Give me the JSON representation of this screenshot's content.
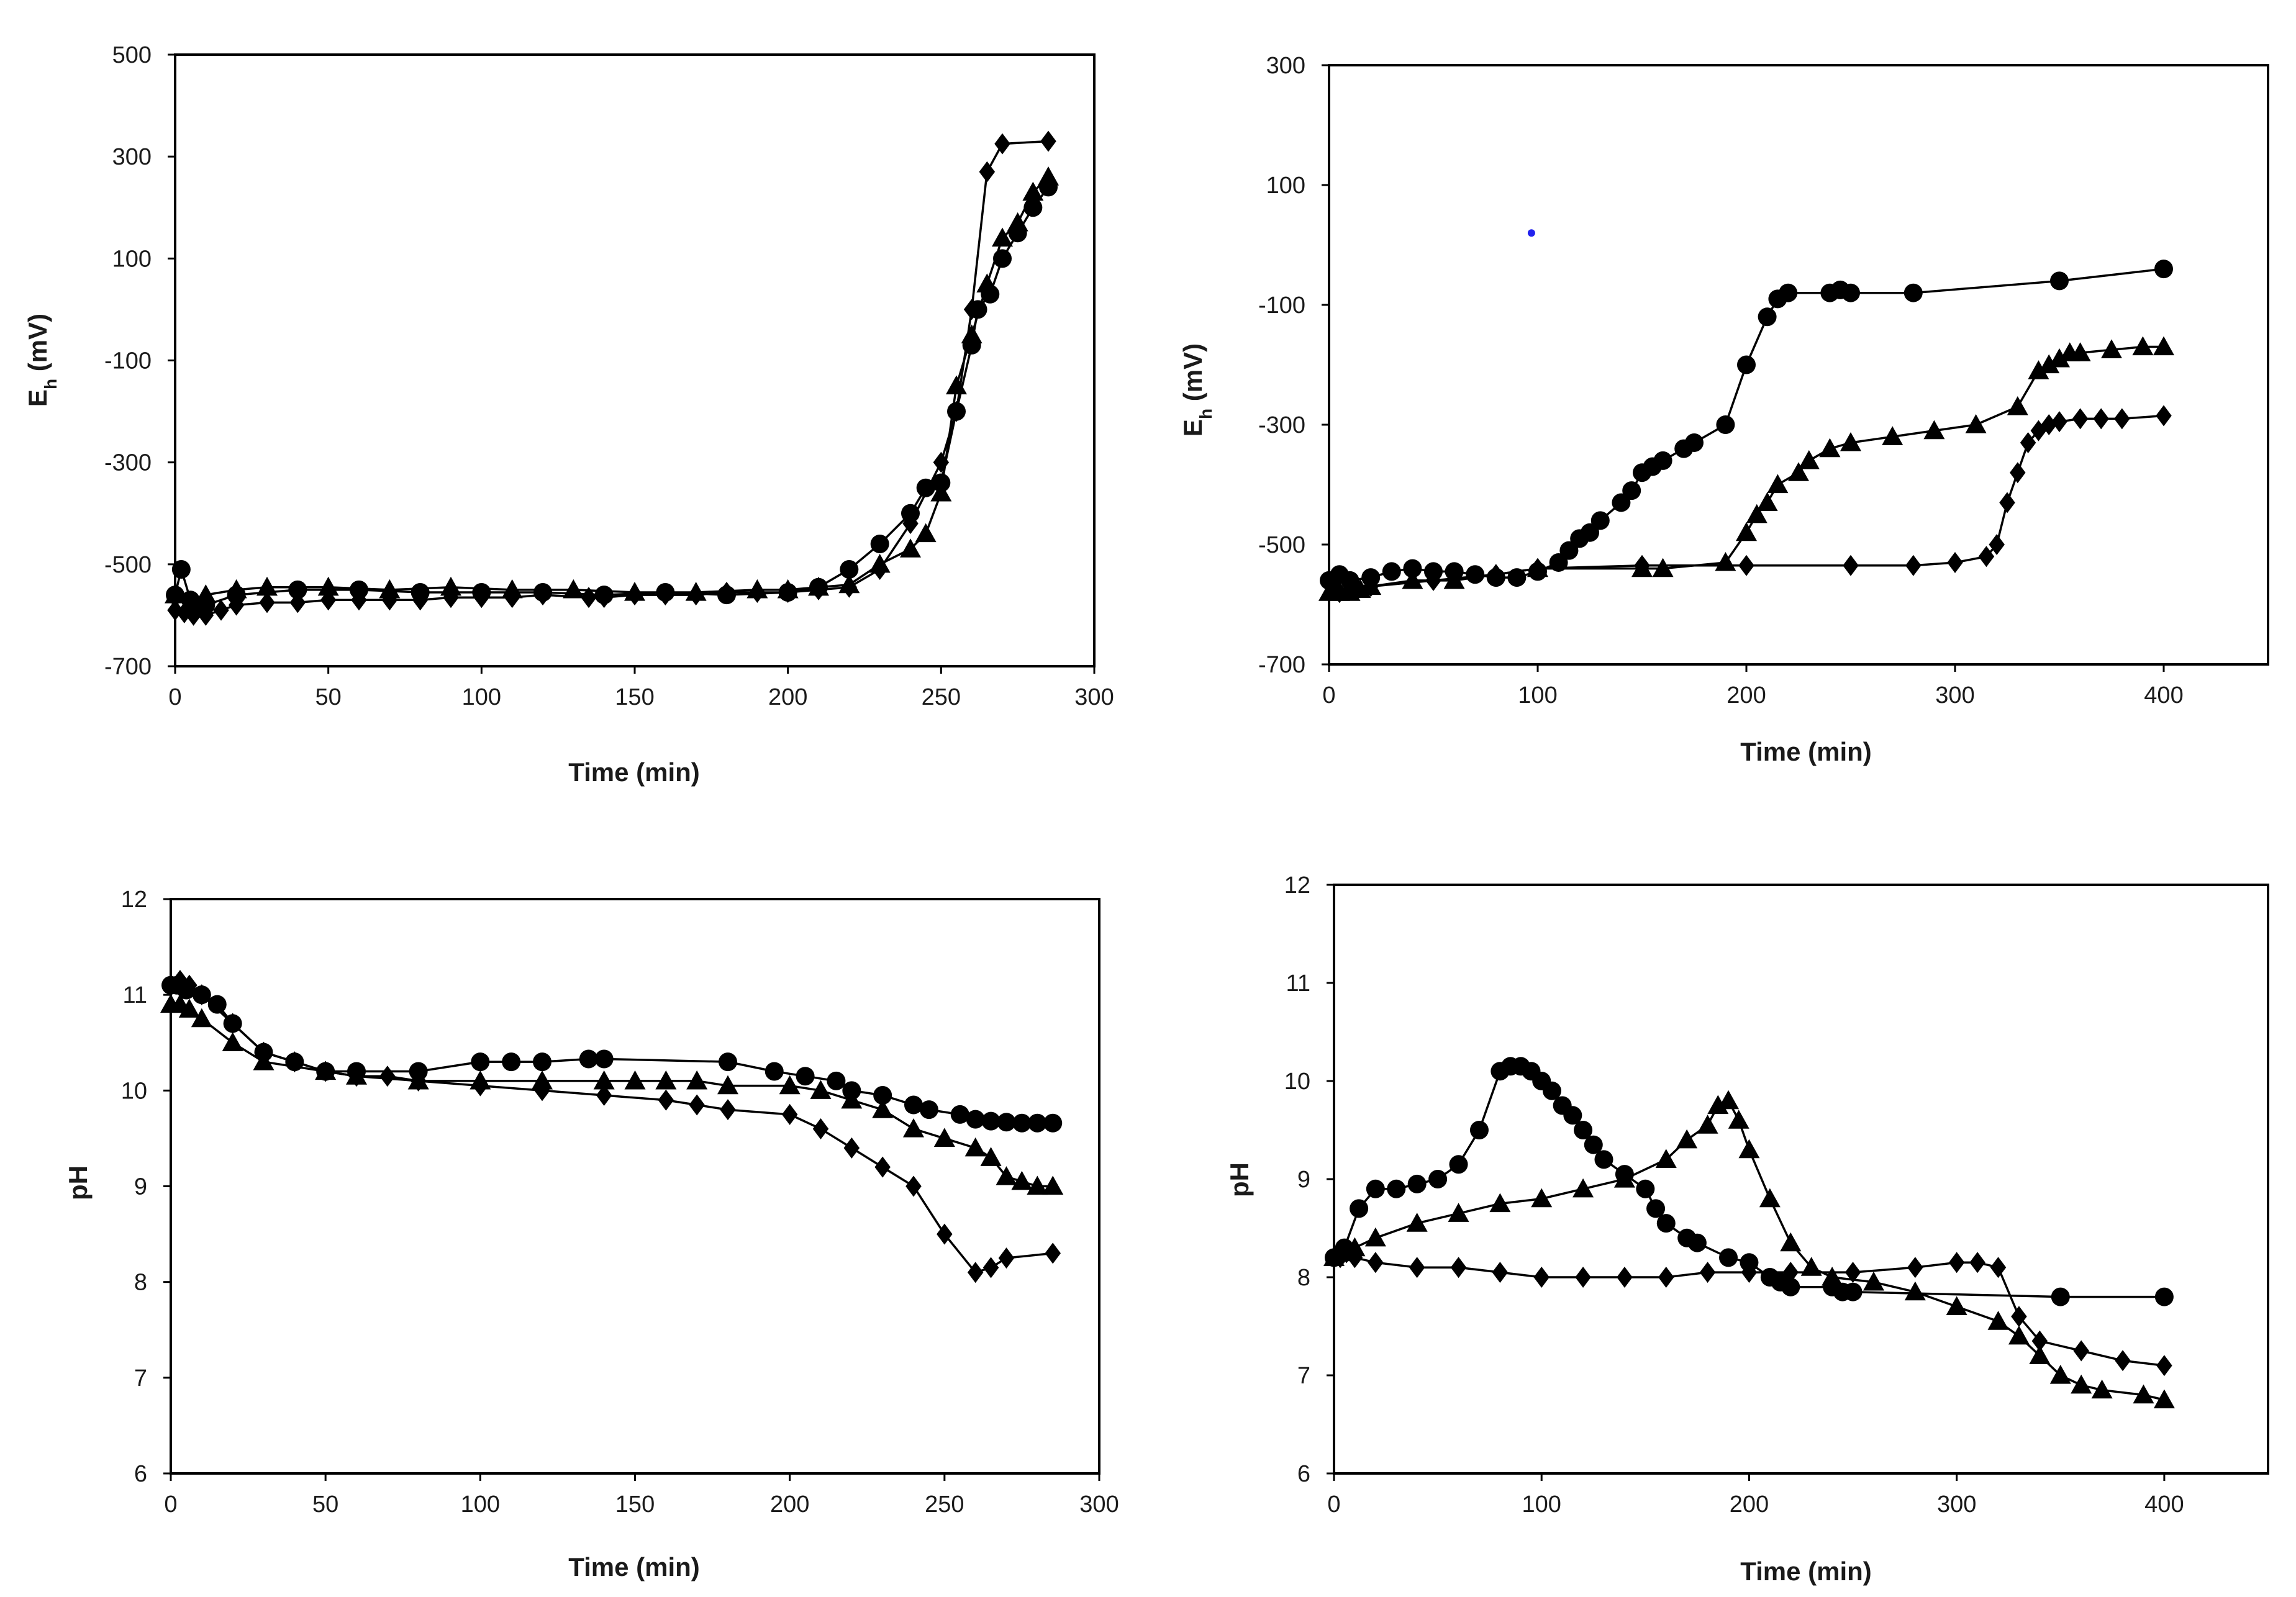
{
  "figure": {
    "background": "#ffffff",
    "ink_color": "#000000",
    "stray_point_color": "#2222ee"
  },
  "chart_data": [
    {
      "id": "eh-a",
      "type": "line",
      "title": "",
      "xlabel": "Time (min)",
      "ylabel_main": "E",
      "ylabel_sub": "h",
      "ylabel_rest": " (mV)",
      "xlim": [
        0,
        300
      ],
      "ylim": [
        -700,
        500
      ],
      "xticks": [
        0,
        50,
        100,
        150,
        200,
        250,
        300
      ],
      "yticks": [
        -700,
        -500,
        -300,
        -100,
        100,
        300,
        500
      ],
      "series": [
        {
          "name": "circle",
          "marker": "circle",
          "x": [
            0,
            2,
            5,
            10,
            20,
            40,
            60,
            80,
            100,
            120,
            140,
            160,
            180,
            200,
            210,
            220,
            230,
            240,
            245,
            250,
            255,
            260,
            262,
            266,
            270,
            275,
            280,
            285
          ],
          "y": [
            -560,
            -510,
            -570,
            -580,
            -560,
            -550,
            -550,
            -555,
            -555,
            -555,
            -560,
            -555,
            -560,
            -555,
            -545,
            -510,
            -460,
            -400,
            -350,
            -340,
            -200,
            -70,
            0,
            30,
            100,
            150,
            200,
            240
          ]
        },
        {
          "name": "triangle",
          "marker": "triangle",
          "x": [
            0,
            5,
            10,
            20,
            30,
            50,
            70,
            90,
            110,
            130,
            150,
            170,
            190,
            200,
            210,
            220,
            230,
            240,
            245,
            250,
            255,
            260,
            265,
            270,
            275,
            280,
            285
          ],
          "y": [
            -560,
            -580,
            -560,
            -550,
            -545,
            -545,
            -550,
            -545,
            -550,
            -550,
            -555,
            -555,
            -550,
            -550,
            -545,
            -540,
            -500,
            -470,
            -440,
            -360,
            -150,
            -50,
            50,
            140,
            170,
            230,
            260
          ]
        },
        {
          "name": "diamond",
          "marker": "diamond",
          "x": [
            0,
            3,
            6,
            10,
            15,
            20,
            30,
            40,
            50,
            60,
            70,
            80,
            90,
            100,
            110,
            120,
            135,
            140,
            150,
            160,
            170,
            180,
            190,
            200,
            210,
            220,
            230,
            240,
            250,
            255,
            260,
            265,
            270,
            285
          ],
          "y": [
            -590,
            -595,
            -600,
            -600,
            -590,
            -580,
            -575,
            -575,
            -570,
            -570,
            -570,
            -570,
            -565,
            -565,
            -565,
            -560,
            -565,
            -565,
            -560,
            -560,
            -560,
            -555,
            -555,
            -555,
            -550,
            -545,
            -510,
            -420,
            -300,
            -200,
            0,
            270,
            325,
            330
          ]
        }
      ]
    },
    {
      "id": "eh-b",
      "type": "line",
      "title": "",
      "xlabel": "Time (min)",
      "ylabel_main": "E",
      "ylabel_sub": "h",
      "ylabel_rest": " (mV)",
      "xlim": [
        0,
        450
      ],
      "ylim": [
        -700,
        300
      ],
      "xticks": [
        0,
        100,
        200,
        300,
        400
      ],
      "yticks": [
        -700,
        -500,
        -300,
        -100,
        100,
        300
      ],
      "stray_point": {
        "x": 97,
        "y": 20
      },
      "series": [
        {
          "name": "circle",
          "marker": "circle",
          "x": [
            0,
            5,
            10,
            20,
            30,
            40,
            50,
            60,
            70,
            80,
            90,
            100,
            110,
            115,
            120,
            125,
            130,
            140,
            145,
            150,
            155,
            160,
            170,
            175,
            190,
            200,
            210,
            215,
            220,
            240,
            245,
            250,
            280,
            350,
            400
          ],
          "y": [
            -560,
            -550,
            -560,
            -555,
            -545,
            -540,
            -545,
            -545,
            -550,
            -555,
            -555,
            -545,
            -530,
            -510,
            -490,
            -480,
            -460,
            -430,
            -410,
            -380,
            -370,
            -360,
            -340,
            -330,
            -300,
            -200,
            -120,
            -90,
            -80,
            -80,
            -75,
            -80,
            -80,
            -60,
            -40
          ]
        },
        {
          "name": "triangle",
          "marker": "triangle",
          "x": [
            0,
            5,
            10,
            15,
            20,
            40,
            60,
            100,
            150,
            160,
            190,
            200,
            205,
            210,
            215,
            225,
            230,
            240,
            250,
            270,
            290,
            310,
            330,
            340,
            345,
            350,
            355,
            360,
            375,
            390,
            400
          ],
          "y": [
            -580,
            -580,
            -580,
            -575,
            -570,
            -560,
            -560,
            -540,
            -540,
            -540,
            -530,
            -480,
            -450,
            -430,
            -400,
            -380,
            -360,
            -340,
            -330,
            -320,
            -310,
            -300,
            -270,
            -210,
            -200,
            -190,
            -180,
            -180,
            -175,
            -170,
            -170
          ]
        },
        {
          "name": "diamond",
          "marker": "diamond",
          "x": [
            0,
            2,
            5,
            10,
            20,
            50,
            80,
            100,
            150,
            200,
            250,
            280,
            300,
            315,
            320,
            325,
            330,
            335,
            340,
            345,
            350,
            360,
            370,
            380,
            400
          ],
          "y": [
            -560,
            -570,
            -580,
            -575,
            -570,
            -560,
            -550,
            -540,
            -535,
            -535,
            -535,
            -535,
            -530,
            -520,
            -500,
            -430,
            -380,
            -330,
            -310,
            -300,
            -295,
            -290,
            -290,
            -290,
            -285
          ]
        }
      ]
    },
    {
      "id": "ph-a",
      "type": "line",
      "title": "",
      "xlabel": "Time (min)",
      "ylabel": "pH",
      "xlim": [
        0,
        300
      ],
      "ylim": [
        6,
        12
      ],
      "xticks": [
        0,
        50,
        100,
        150,
        200,
        250,
        300
      ],
      "yticks": [
        6,
        7,
        8,
        9,
        10,
        11,
        12
      ],
      "series": [
        {
          "name": "circle",
          "marker": "circle",
          "x": [
            0,
            2,
            5,
            10,
            15,
            20,
            30,
            40,
            50,
            60,
            80,
            100,
            110,
            120,
            135,
            140,
            180,
            195,
            205,
            215,
            220,
            230,
            240,
            245,
            255,
            260,
            265,
            270,
            275,
            280,
            285
          ],
          "y": [
            11.1,
            11.1,
            11.05,
            11.0,
            10.9,
            10.7,
            10.4,
            10.3,
            10.2,
            10.2,
            10.2,
            10.3,
            10.3,
            10.3,
            10.33,
            10.33,
            10.3,
            10.2,
            10.15,
            10.1,
            10.0,
            9.95,
            9.85,
            9.8,
            9.75,
            9.7,
            9.68,
            9.67,
            9.66,
            9.66,
            9.66
          ]
        },
        {
          "name": "triangle",
          "marker": "triangle",
          "x": [
            0,
            3,
            6,
            10,
            20,
            30,
            50,
            60,
            80,
            100,
            120,
            140,
            150,
            160,
            170,
            180,
            200,
            210,
            220,
            230,
            240,
            250,
            260,
            265,
            270,
            275,
            280,
            285
          ],
          "y": [
            10.9,
            10.9,
            10.85,
            10.75,
            10.5,
            10.3,
            10.2,
            10.15,
            10.1,
            10.1,
            10.1,
            10.1,
            10.1,
            10.1,
            10.1,
            10.05,
            10.05,
            10.0,
            9.9,
            9.8,
            9.6,
            9.5,
            9.4,
            9.3,
            9.1,
            9.05,
            9.0,
            9.0
          ]
        },
        {
          "name": "diamond",
          "marker": "diamond",
          "x": [
            0,
            3,
            6,
            10,
            20,
            30,
            40,
            50,
            60,
            70,
            80,
            100,
            120,
            140,
            160,
            170,
            180,
            200,
            210,
            220,
            230,
            240,
            250,
            260,
            265,
            270,
            285
          ],
          "y": [
            11.1,
            11.15,
            11.1,
            11.0,
            10.7,
            10.4,
            10.3,
            10.2,
            10.15,
            10.15,
            10.1,
            10.05,
            10.0,
            9.95,
            9.9,
            9.85,
            9.8,
            9.75,
            9.6,
            9.4,
            9.2,
            9.0,
            8.5,
            8.1,
            8.15,
            8.25,
            8.3
          ]
        }
      ]
    },
    {
      "id": "ph-b",
      "type": "line",
      "title": "",
      "xlabel": "Time (min)",
      "ylabel": "pH",
      "xlim": [
        0,
        450
      ],
      "ylim": [
        6,
        12
      ],
      "xticks": [
        0,
        100,
        200,
        300,
        400
      ],
      "yticks": [
        6,
        7,
        8,
        9,
        10,
        11,
        12
      ],
      "series": [
        {
          "name": "circle",
          "marker": "circle",
          "x": [
            0,
            5,
            12,
            20,
            30,
            40,
            50,
            60,
            70,
            80,
            85,
            90,
            95,
            100,
            105,
            110,
            115,
            120,
            125,
            130,
            140,
            150,
            155,
            160,
            170,
            175,
            190,
            200,
            210,
            215,
            220,
            240,
            245,
            250,
            350,
            400
          ],
          "y": [
            8.2,
            8.3,
            8.7,
            8.9,
            8.9,
            8.95,
            9.0,
            9.15,
            9.5,
            10.1,
            10.15,
            10.15,
            10.1,
            10.0,
            9.9,
            9.75,
            9.65,
            9.5,
            9.35,
            9.2,
            9.05,
            8.9,
            8.7,
            8.55,
            8.4,
            8.35,
            8.2,
            8.15,
            8.0,
            7.95,
            7.9,
            7.9,
            7.85,
            7.85,
            7.8,
            7.8
          ]
        },
        {
          "name": "triangle",
          "marker": "triangle",
          "x": [
            0,
            5,
            10,
            20,
            40,
            60,
            80,
            100,
            120,
            140,
            160,
            170,
            180,
            185,
            190,
            195,
            200,
            210,
            220,
            230,
            240,
            260,
            280,
            300,
            320,
            330,
            340,
            350,
            360,
            370,
            390,
            400
          ],
          "y": [
            8.2,
            8.25,
            8.3,
            8.4,
            8.55,
            8.65,
            8.75,
            8.8,
            8.9,
            9.0,
            9.2,
            9.4,
            9.55,
            9.75,
            9.8,
            9.6,
            9.3,
            8.8,
            8.35,
            8.1,
            8.0,
            7.95,
            7.85,
            7.7,
            7.55,
            7.4,
            7.2,
            7.0,
            6.9,
            6.85,
            6.8,
            6.75
          ]
        },
        {
          "name": "diamond",
          "marker": "diamond",
          "x": [
            0,
            3,
            6,
            10,
            20,
            40,
            60,
            80,
            100,
            120,
            140,
            160,
            180,
            200,
            220,
            250,
            280,
            300,
            310,
            320,
            330,
            340,
            360,
            380,
            400
          ],
          "y": [
            8.2,
            8.2,
            8.25,
            8.2,
            8.15,
            8.1,
            8.1,
            8.05,
            8.0,
            8.0,
            8.0,
            8.0,
            8.05,
            8.05,
            8.05,
            8.05,
            8.1,
            8.15,
            8.15,
            8.1,
            7.6,
            7.35,
            7.25,
            7.15,
            7.1
          ]
        }
      ]
    }
  ]
}
